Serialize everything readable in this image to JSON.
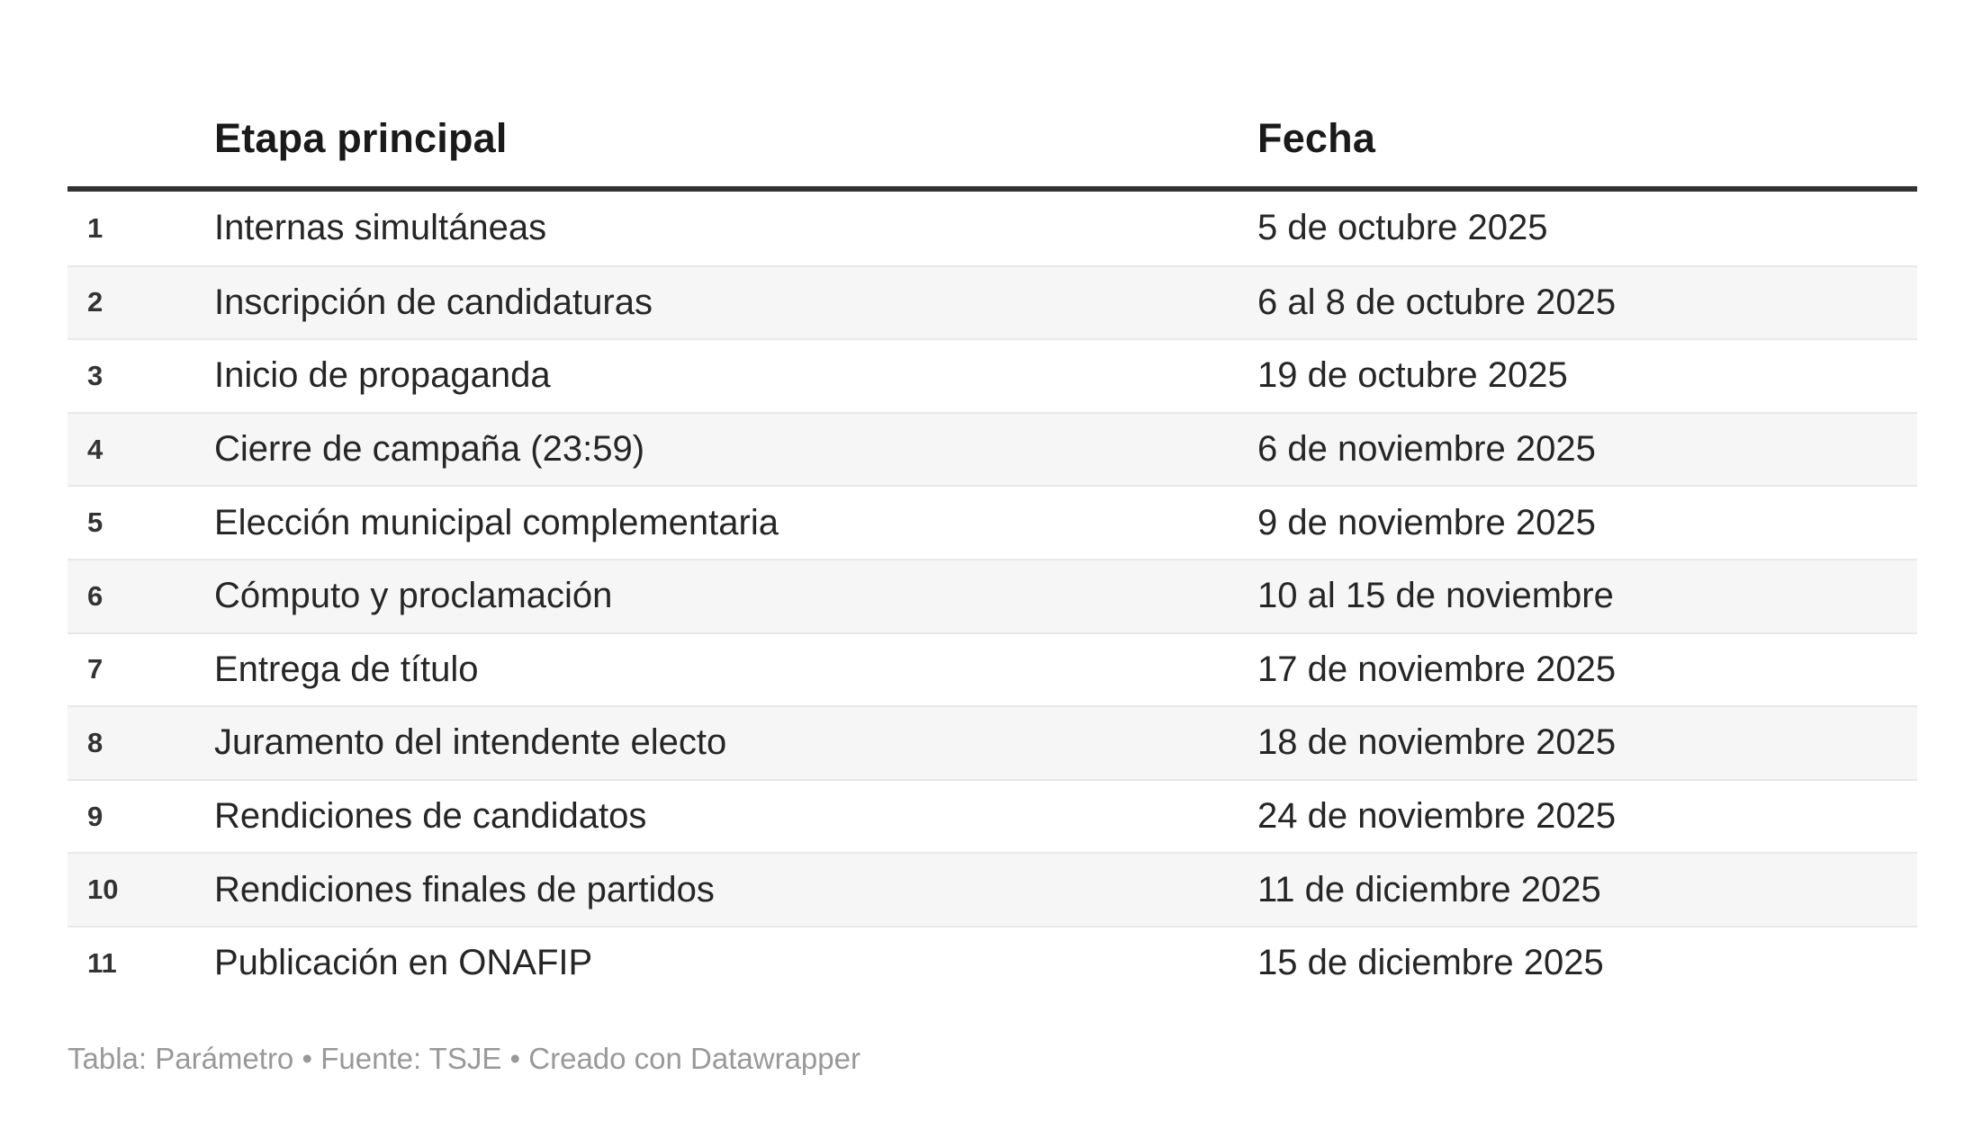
{
  "chart_data": {
    "type": "table",
    "columns": [
      "",
      "Etapa principal",
      "Fecha"
    ],
    "rows": [
      {
        "num": "1",
        "stage": "Internas simultáneas",
        "date": "5 de octubre 2025"
      },
      {
        "num": "2",
        "stage": "Inscripción de candidaturas",
        "date": "6 al 8 de octubre 2025"
      },
      {
        "num": "3",
        "stage": "Inicio de propaganda",
        "date": "19 de octubre 2025"
      },
      {
        "num": "4",
        "stage": "Cierre de campaña (23:59)",
        "date": "6 de noviembre 2025"
      },
      {
        "num": "5",
        "stage": "Elección municipal complementaria",
        "date": "9 de noviembre 2025"
      },
      {
        "num": "6",
        "stage": "Cómputo y proclamación",
        "date": "10 al 15 de noviembre"
      },
      {
        "num": "7",
        "stage": "Entrega de título",
        "date": "17 de noviembre 2025"
      },
      {
        "num": "8",
        "stage": "Juramento del intendente electo",
        "date": "18 de noviembre 2025"
      },
      {
        "num": "9",
        "stage": "Rendiciones de candidatos",
        "date": "24 de noviembre 2025"
      },
      {
        "num": "10",
        "stage": "Rendiciones finales de partidos",
        "date": "11 de diciembre 2025"
      },
      {
        "num": "11",
        "stage": "Publicación en ONAFIP",
        "date": "15 de diciembre 2025"
      }
    ],
    "title": "",
    "layout": {
      "striped_rows": "even",
      "header_rule": true,
      "legend": "none"
    }
  },
  "header": {
    "stage_label": "Etapa principal",
    "date_label": "Fecha"
  },
  "footer": {
    "full_text": "Tabla: Parámetro • Fuente: TSJE • Creado con Datawrapper",
    "table_credit": "Tabla: Parámetro",
    "separator": "•",
    "source": "Fuente: TSJE",
    "created_with": "Creado con Datawrapper"
  },
  "colors": {
    "stripe": "#f6f6f6",
    "row_border": "#e8e8e8",
    "header_rule": "#333333",
    "body_text": "#262626",
    "number_text": "#333333",
    "footer_text": "#999999"
  }
}
